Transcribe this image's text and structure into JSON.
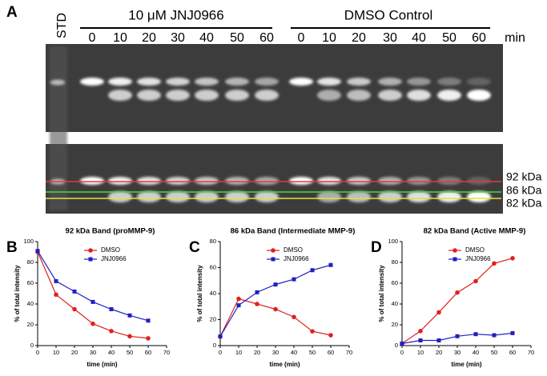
{
  "panel_a": {
    "label": "A",
    "std": "STD",
    "unit": "min",
    "groups": [
      {
        "label": "10 μM JNJ0966",
        "times": [
          "0",
          "10",
          "20",
          "30",
          "40",
          "50",
          "60"
        ]
      },
      {
        "label": "DMSO Control",
        "times": [
          "0",
          "10",
          "20",
          "30",
          "40",
          "50",
          "60"
        ]
      }
    ],
    "markers": [
      {
        "label": "92 kDa",
        "color": "#e8383a"
      },
      {
        "label": "86 kDa",
        "color": "#3adf3a"
      },
      {
        "label": "82 kDa",
        "color": "#e8e040"
      }
    ]
  },
  "chart_data": [
    {
      "type": "line",
      "panel": "B",
      "title": "92 kDa Band (proMMP-9)",
      "xlabel": "time (min)",
      "ylabel": "% of total intensity",
      "x": [
        0,
        10,
        20,
        30,
        40,
        50,
        60
      ],
      "xlim": [
        0,
        70
      ],
      "xticks": [
        0,
        10,
        20,
        30,
        40,
        50,
        60,
        70
      ],
      "ylim": [
        0,
        100
      ],
      "yticks": [
        0,
        20,
        40,
        60,
        80,
        100
      ],
      "series": [
        {
          "name": "DMSO",
          "color": "#e02020",
          "marker": "circle",
          "values": [
            90,
            49,
            35,
            21,
            14,
            9,
            7
          ]
        },
        {
          "name": "JNJ0966",
          "color": "#2020c0",
          "marker": "square",
          "values": [
            91,
            62,
            52,
            42,
            35,
            29,
            24
          ]
        }
      ]
    },
    {
      "type": "line",
      "panel": "C",
      "title": "86 kDa Band (Intermediate MMP-9)",
      "xlabel": "time (min)",
      "ylabel": "% of total intensity",
      "x": [
        0,
        10,
        20,
        30,
        40,
        50,
        60
      ],
      "xlim": [
        0,
        70
      ],
      "xticks": [
        0,
        10,
        20,
        30,
        40,
        50,
        60,
        70
      ],
      "ylim": [
        0,
        80
      ],
      "yticks": [
        0,
        20,
        40,
        60,
        80
      ],
      "series": [
        {
          "name": "DMSO",
          "color": "#e02020",
          "marker": "circle",
          "values": [
            7,
            36,
            32,
            28,
            22,
            11,
            8
          ]
        },
        {
          "name": "JNJ0966",
          "color": "#2020c0",
          "marker": "square",
          "values": [
            7,
            31,
            41,
            47,
            51,
            58,
            62
          ]
        }
      ]
    },
    {
      "type": "line",
      "panel": "D",
      "title": "82 kDa Band (Active MMP-9)",
      "xlabel": "time (min)",
      "ylabel": "% of total intensity",
      "x": [
        0,
        10,
        20,
        30,
        40,
        50,
        60
      ],
      "xlim": [
        0,
        70
      ],
      "xticks": [
        0,
        10,
        20,
        30,
        40,
        50,
        60,
        70
      ],
      "ylim": [
        0,
        100
      ],
      "yticks": [
        0,
        20,
        40,
        60,
        80,
        100
      ],
      "series": [
        {
          "name": "DMSO",
          "color": "#e02020",
          "marker": "circle",
          "values": [
            2,
            14,
            32,
            51,
            62,
            79,
            84
          ]
        },
        {
          "name": "JNJ0966",
          "color": "#2020c0",
          "marker": "square",
          "values": [
            2,
            5,
            5,
            9,
            11,
            10,
            12
          ]
        }
      ]
    }
  ]
}
